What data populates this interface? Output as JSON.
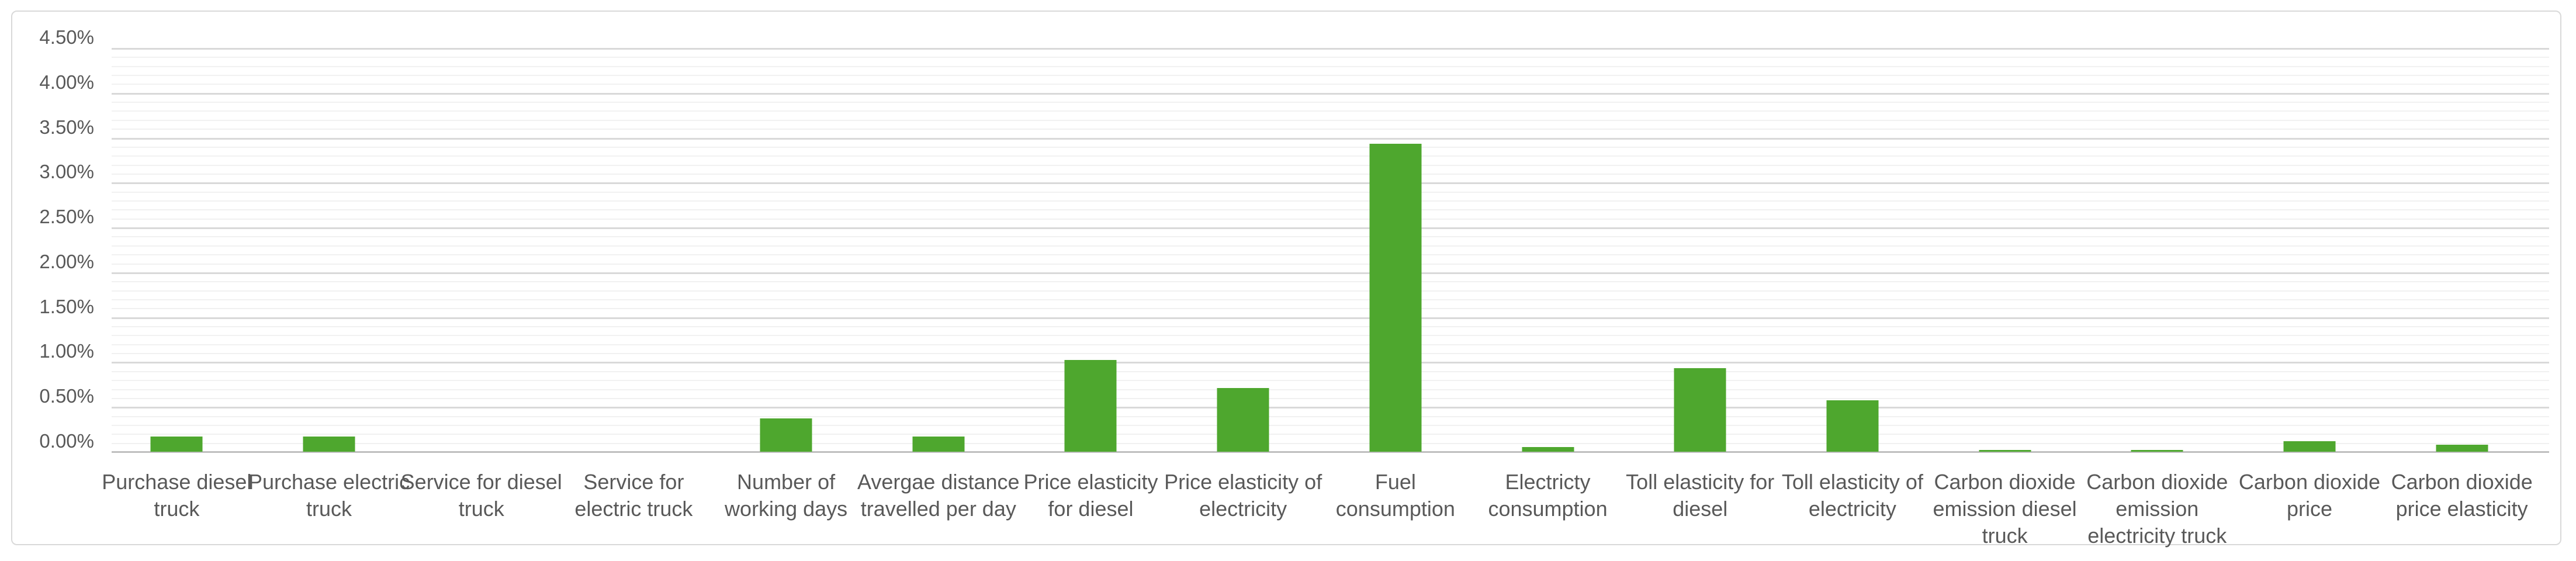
{
  "chart_data": {
    "type": "bar",
    "title": "",
    "xlabel": "",
    "ylabel": "",
    "unit": "%",
    "categories": [
      "Purchase diesel\ntruck",
      "Purchase electric\ntruck",
      "Service for diesel\ntruck",
      "Service for\nelectric truck",
      "Number of\nworking days",
      "Avergae distance\ntravelled per day",
      "Price elasticity\nfor diesel",
      "Price elasticity of\nelectricity",
      "Fuel\nconsumption",
      "Electricty\nconsumption",
      "Toll elasticity for\ndiesel",
      "Toll elasticity of\nelectricity",
      "Carbon dioxide\nemission diesel\ntruck",
      "Carbon dioxide\nemission\nelectricity truck",
      "Carbon dioxide\nprice",
      "Carbon dioxide\nprice elasticity"
    ],
    "values": [
      0.17,
      0.17,
      0.0,
      0.0,
      0.37,
      0.17,
      1.02,
      0.71,
      3.43,
      0.05,
      0.93,
      0.57,
      0.02,
      0.02,
      0.12,
      0.08
    ],
    "ylim": [
      0,
      4.5
    ],
    "y_major_step": 0.5,
    "y_minor_step": 0.1,
    "y_tick_labels": [
      "0.00%",
      "0.50%",
      "1.00%",
      "1.50%",
      "2.00%",
      "2.50%",
      "3.00%",
      "3.50%",
      "4.00%",
      "4.50%"
    ],
    "grid": "major and minor horizontal gridlines",
    "legend_position": "none",
    "bar_color": "#4EA72E",
    "axis_text_color": "#595959"
  }
}
